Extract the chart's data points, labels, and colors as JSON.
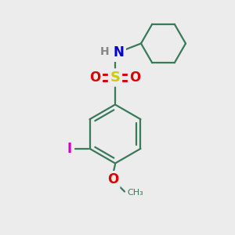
{
  "bg_color": "#ececec",
  "bond_color": "#3a7a5a",
  "bond_width": 1.6,
  "atom_colors": {
    "N": "#0000cc",
    "H": "#888888",
    "S": "#cccc00",
    "O": "#dd0000",
    "I": "#cc00cc",
    "C": "#3a7a5a",
    "CH3": "#3a7a5a"
  },
  "font_size": 10
}
